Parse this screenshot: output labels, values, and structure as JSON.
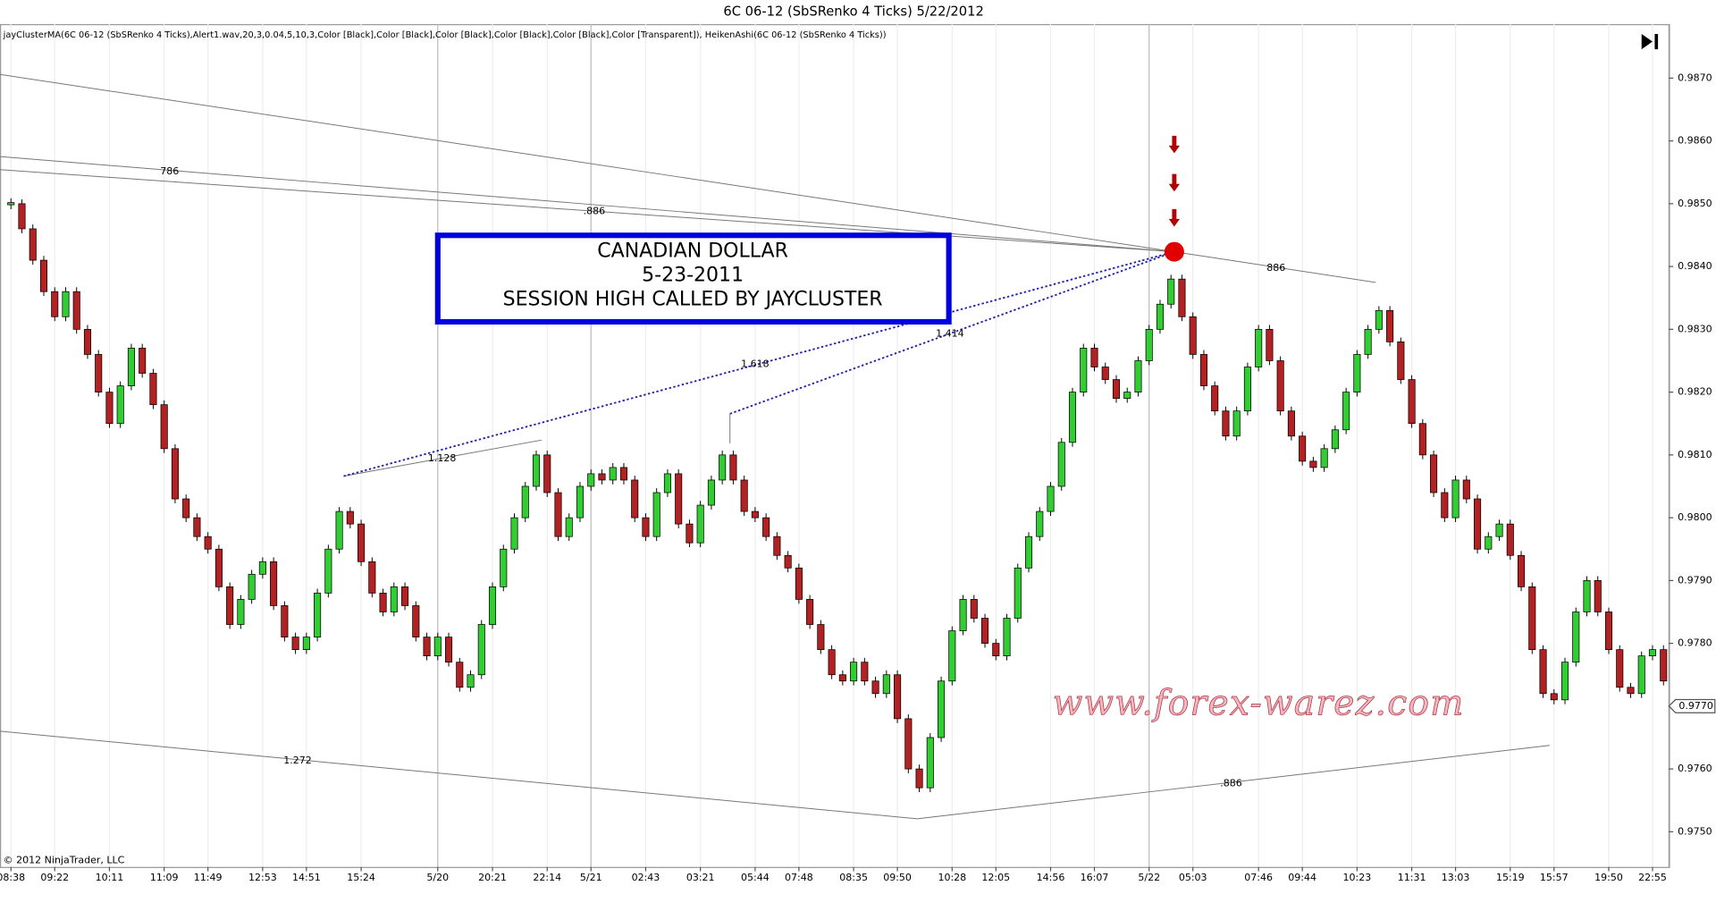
{
  "header": {
    "title": "6C 06-12 (SbSRenko 4 Ticks)  5/22/2012",
    "indicators": "jayClusterMA(6C 06-12 (SbSRenko 4 Ticks),Alert1.wav,20,3,0.04,5,10,3,Color [Black],Color [Black],Color [Black],Color [Black],Color [Black],Color [Transparent]), HeikenAshi(6C 06-12 (SbSRenko 4 Ticks))",
    "copyright": "© 2012 NinjaTrader, LLC"
  },
  "chart_data": {
    "type": "renko",
    "categories": [
      "08:38",
      null,
      null,
      null,
      "09:22",
      null,
      null,
      null,
      null,
      "10:11",
      null,
      null,
      null,
      null,
      "11:09",
      null,
      null,
      null,
      "11:49",
      null,
      null,
      null,
      null,
      "12:53",
      null,
      null,
      null,
      "14:51",
      null,
      null,
      null,
      null,
      "15:24",
      null,
      null,
      null,
      null,
      null,
      null,
      "5/20",
      null,
      null,
      null,
      null,
      "20:21",
      null,
      null,
      null,
      null,
      "22:14",
      null,
      null,
      null,
      "5/21",
      null,
      null,
      null,
      null,
      "02:43",
      null,
      null,
      null,
      null,
      "03:21",
      null,
      null,
      null,
      null,
      "05:44",
      null,
      null,
      null,
      "07:48",
      null,
      null,
      null,
      null,
      "08:35",
      null,
      null,
      null,
      "09:50",
      null,
      null,
      null,
      null,
      "10:28",
      null,
      null,
      null,
      "12:05",
      null,
      null,
      null,
      null,
      "14:56",
      null,
      null,
      null,
      "16:07",
      null,
      null,
      null,
      null,
      "5/22",
      null,
      null,
      null,
      "05:03",
      null,
      null,
      null,
      null,
      null,
      "07:46",
      null,
      null,
      null,
      "09:44",
      null,
      null,
      null,
      null,
      "10:23",
      null,
      null,
      null,
      null,
      "11:31",
      null,
      null,
      null,
      "13:03",
      null,
      null,
      null,
      null,
      "15:19",
      null,
      null,
      null,
      "15:57",
      null,
      null,
      null,
      null,
      "19:50",
      null,
      null,
      null,
      "22:55",
      null
    ],
    "values": [
      0.985,
      0.9846,
      0.9841,
      0.9836,
      0.9832,
      0.9836,
      0.983,
      0.9826,
      0.982,
      0.9815,
      0.9821,
      0.9827,
      0.9823,
      0.9818,
      0.9811,
      0.9803,
      0.98,
      0.9797,
      0.9795,
      0.9789,
      0.9783,
      0.9787,
      0.9791,
      0.9793,
      0.9786,
      0.9781,
      0.9779,
      0.9781,
      0.9788,
      0.9795,
      0.9801,
      0.9799,
      0.9793,
      0.9788,
      0.9785,
      0.9789,
      0.9786,
      0.9781,
      0.9778,
      0.9781,
      0.9777,
      0.9773,
      0.9775,
      0.9783,
      0.9789,
      0.9795,
      0.98,
      0.9805,
      0.981,
      0.9804,
      0.9797,
      0.98,
      0.9805,
      0.9807,
      0.9806,
      0.9808,
      0.9806,
      0.98,
      0.9797,
      0.9804,
      0.9807,
      0.9799,
      0.9796,
      0.9802,
      0.9806,
      0.981,
      0.9806,
      0.9801,
      0.98,
      0.9797,
      0.9794,
      0.9792,
      0.9787,
      0.9783,
      0.9779,
      0.9775,
      0.9774,
      0.9777,
      0.9774,
      0.9772,
      0.9775,
      0.9768,
      0.976,
      0.9757,
      0.9765,
      0.9774,
      0.9782,
      0.9787,
      0.9784,
      0.978,
      0.9778,
      0.9784,
      0.9792,
      0.9797,
      0.9801,
      0.9805,
      0.9812,
      0.982,
      0.9827,
      0.9824,
      0.9822,
      0.9819,
      0.982,
      0.9825,
      0.983,
      0.9834,
      0.9838,
      0.9832,
      0.9826,
      0.9821,
      0.9817,
      0.9813,
      0.9817,
      0.9824,
      0.983,
      0.9825,
      0.9817,
      0.9813,
      0.9809,
      0.9808,
      0.9811,
      0.9814,
      0.982,
      0.9826,
      0.983,
      0.9833,
      0.9828,
      0.9822,
      0.9815,
      0.981,
      0.9804,
      0.98,
      0.9806,
      0.9803,
      0.9795,
      0.9797,
      0.9799,
      0.9794,
      0.9789,
      0.9779,
      0.9772,
      0.9771,
      0.9777,
      0.9785,
      0.979,
      0.9785,
      0.9779,
      0.9773,
      0.9772,
      0.9778,
      0.9779,
      0.9774
    ],
    "up_color": "#32cd32",
    "down_color": "#b22222",
    "ylim": [
      0.97444,
      0.98786
    ],
    "yticks": [
      {
        "value": 0.975,
        "label": "0.9750"
      },
      {
        "value": 0.976,
        "label": "0.9760"
      },
      {
        "value": 0.977,
        "label": "0.9770"
      },
      {
        "value": 0.978,
        "label": "0.9780"
      },
      {
        "value": 0.979,
        "label": "0.9790"
      },
      {
        "value": 0.98,
        "label": "0.9800"
      },
      {
        "value": 0.981,
        "label": "0.9810"
      },
      {
        "value": 0.982,
        "label": "0.9820"
      },
      {
        "value": 0.983,
        "label": "0.9830"
      },
      {
        "value": 0.984,
        "label": "0.9840"
      },
      {
        "value": 0.985,
        "label": "0.9850"
      },
      {
        "value": 0.986,
        "label": "0.9860"
      },
      {
        "value": 0.987,
        "label": "0.9870"
      }
    ],
    "last_price": {
      "value": 0.977,
      "label": "0.9770"
    },
    "annotations": {
      "box": [
        "CANADIAN DOLLAR",
        "5-23-2011",
        "SESSION HIGH CALLED BY JAYCLUSTER"
      ],
      "fib_labels": [
        "786",
        ".886",
        "886",
        "1.414",
        "1.618",
        "1.128",
        "1.272",
        ".886"
      ]
    },
    "watermark": "www.forex-warez.com"
  }
}
